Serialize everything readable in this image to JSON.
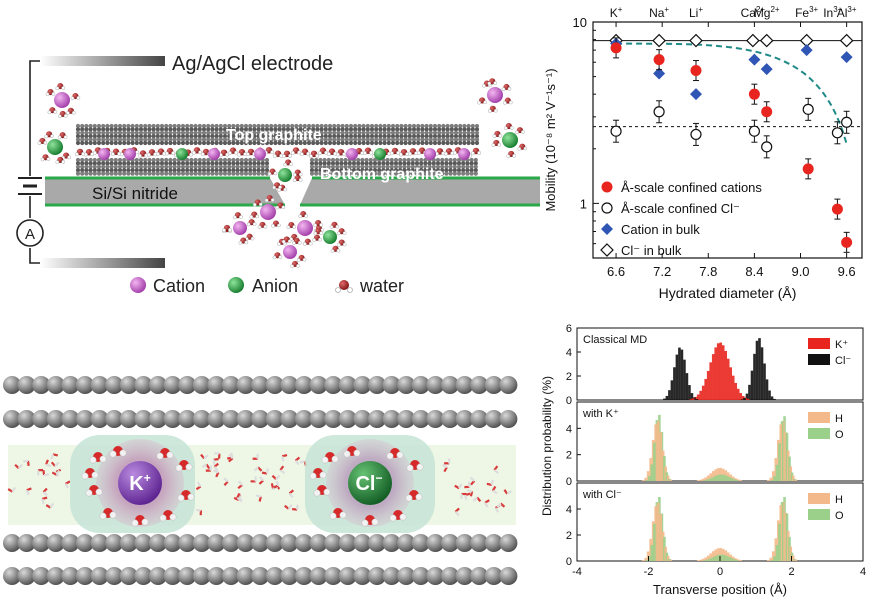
{
  "schematic": {
    "electrode_label": "Ag/AgCl electrode",
    "top_graphite_label": "Top graphite",
    "bottom_graphite_label": "Bottom graphite",
    "substrate_label": "Si/Si nitride",
    "ammeter_label": "A",
    "legend": [
      {
        "label": "Cation",
        "color": "#c24fc4"
      },
      {
        "label": "Anion",
        "color": "#1f9a3c"
      },
      {
        "label": "water",
        "color": "#a51d1d"
      }
    ]
  },
  "md_snapshot": {
    "cation_label": "K",
    "cation_charge": "+",
    "anion_label": "Cl",
    "anion_charge": "−",
    "cation_color": "#7a3bb0",
    "anion_color": "#1b7a33",
    "carbon_color": "#7a7a7a"
  },
  "colors": {
    "confined_cation": "#e8261f",
    "bulk_cation": "#2f55b5",
    "fit_line": "#1f8a87",
    "k_hist": "#e8261f",
    "cl_hist": "#111111",
    "h_hist": "#f4b98a",
    "o_hist": "#9bd08b"
  },
  "chart_data": [
    {
      "type": "scatter",
      "title": "",
      "xlabel": "Hydrated diameter (Å)",
      "ylabel": "Mobility (10⁻⁸ m² V⁻¹s⁻¹)",
      "xlim": [
        6.3,
        9.8
      ],
      "ylim": [
        0.5,
        10
      ],
      "yscale": "log",
      "xticks": [
        "6.6",
        "7.2",
        "7.8",
        "8.4",
        "9.0",
        "9.6"
      ],
      "yticks": [
        "1",
        "10"
      ],
      "top_labels": [
        {
          "ion": "K",
          "charge": "+",
          "x": 6.6
        },
        {
          "ion": "Na",
          "charge": "+",
          "x": 7.16
        },
        {
          "ion": "Li",
          "charge": "+",
          "x": 7.64
        },
        {
          "ion": "Ca",
          "charge": "2+",
          "x": 8.38
        },
        {
          "ion": "Mg",
          "charge": "2+",
          "x": 8.56
        },
        {
          "ion": "Fe",
          "charge": "3+",
          "x": 9.08
        },
        {
          "ion": "In",
          "charge": "3+",
          "x": 9.42
        },
        {
          "ion": "Al",
          "charge": "3+",
          "x": 9.6
        }
      ],
      "series": [
        {
          "name": "Å-scale confined cations",
          "marker": "filled-circle",
          "x": [
            6.6,
            7.16,
            7.64,
            8.4,
            8.56,
            9.1,
            9.48,
            9.6
          ],
          "y": [
            7.2,
            6.2,
            5.4,
            4.0,
            3.2,
            1.55,
            0.93,
            0.61
          ]
        },
        {
          "name": "Å-scale confined Cl⁻",
          "marker": "open-circle",
          "x": [
            6.6,
            7.16,
            7.64,
            8.4,
            8.56,
            9.1,
            9.48,
            9.6
          ],
          "y": [
            2.5,
            3.2,
            2.4,
            2.5,
            2.05,
            3.3,
            2.45,
            2.8
          ]
        },
        {
          "name": "Cation in bulk",
          "marker": "filled-diamond",
          "x": [
            6.6,
            7.16,
            7.64,
            8.4,
            8.56,
            9.08,
            9.6
          ],
          "y": [
            7.6,
            5.2,
            4.0,
            6.2,
            5.5,
            7.0,
            6.4
          ]
        },
        {
          "name": "Cl⁻ in bulk",
          "marker": "open-diamond",
          "x": [
            6.6,
            7.16,
            7.64,
            8.38,
            8.56,
            9.08,
            9.6
          ],
          "y": [
            7.9,
            7.9,
            7.9,
            7.9,
            7.9,
            7.9,
            7.9
          ]
        }
      ]
    },
    {
      "type": "bar",
      "title": "",
      "xlabel": "Transverse position (Å)",
      "ylabel": "Distribution probability (%)",
      "xlim": [
        -4,
        4
      ],
      "xticks": [
        "-4",
        "-2",
        "0",
        "2",
        "4"
      ],
      "subplots": [
        {
          "label": "Classical MD",
          "ylim": [
            0,
            6
          ],
          "yticks": [
            "0",
            "2",
            "4",
            "6"
          ],
          "series": [
            {
              "name": "K⁺",
              "peaks": [
                {
                  "center": 0.0,
                  "height": 4.8,
                  "width": 0.62
                }
              ]
            },
            {
              "name": "Cl⁻",
              "peaks": [
                {
                  "center": -1.15,
                  "height": 4.4,
                  "width": 0.36
                },
                {
                  "center": 1.05,
                  "height": 5.2,
                  "width": 0.34
                }
              ]
            }
          ]
        },
        {
          "label": "with K⁺",
          "ylim": [
            0,
            6
          ],
          "yticks": [
            "0",
            "2",
            "4"
          ],
          "series": [
            {
              "name": "H",
              "peaks": [
                {
                  "center": -1.75,
                  "height": 4.6,
                  "width": 0.3
                },
                {
                  "center": 1.75,
                  "height": 4.6,
                  "width": 0.3
                },
                {
                  "center": 0.0,
                  "height": 1.0,
                  "width": 0.55
                }
              ]
            },
            {
              "name": "O",
              "peaks": [
                {
                  "center": -1.75,
                  "height": 5.1,
                  "width": 0.25
                },
                {
                  "center": 1.75,
                  "height": 5.0,
                  "width": 0.25
                },
                {
                  "center": 0.0,
                  "height": 0.5,
                  "width": 0.5
                }
              ]
            }
          ]
        },
        {
          "label": "with Cl⁻",
          "ylim": [
            0,
            6
          ],
          "yticks": [
            "0",
            "2",
            "4"
          ],
          "series": [
            {
              "name": "H",
              "peaks": [
                {
                  "center": -1.75,
                  "height": 4.5,
                  "width": 0.3
                },
                {
                  "center": 1.75,
                  "height": 4.6,
                  "width": 0.3
                },
                {
                  "center": 0.0,
                  "height": 1.0,
                  "width": 0.55
                }
              ]
            },
            {
              "name": "O",
              "peaks": [
                {
                  "center": -1.75,
                  "height": 5.0,
                  "width": 0.25
                },
                {
                  "center": 1.75,
                  "height": 5.0,
                  "width": 0.25
                },
                {
                  "center": 0.0,
                  "height": 0.5,
                  "width": 0.5
                }
              ]
            }
          ]
        }
      ]
    }
  ]
}
